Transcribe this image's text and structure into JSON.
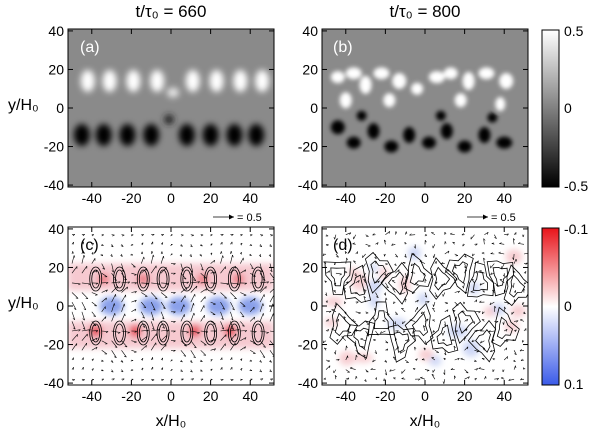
{
  "figure": {
    "column_titles": [
      "t/τ₀ = 660",
      "t/τ₀ = 800"
    ],
    "panel_labels": [
      "(a)",
      "(b)",
      "(c)",
      "(d)"
    ],
    "y_axis_label": "y/H₀",
    "x_axis_label": "x/H₀",
    "x_ticks": [
      "-40",
      "-20",
      "0",
      "20",
      "40"
    ],
    "x_tick_values": [
      -40,
      -20,
      0,
      20,
      40
    ],
    "y_ticks": [
      "40",
      "20",
      "0",
      "-20",
      "-40"
    ],
    "y_tick_values": [
      40,
      20,
      0,
      -20,
      -40
    ],
    "top_colorbar": {
      "labels": [
        "0.5",
        "0",
        "-0.5"
      ],
      "colors": [
        "#ffffff",
        "#808080",
        "#000000"
      ]
    },
    "bottom_colorbar": {
      "labels": [
        "-0.1",
        "0",
        "0.1"
      ],
      "colors": [
        "#e8141a",
        "#ffffff",
        "#3a5ae8"
      ]
    },
    "reference_vector_label": "= 0.5",
    "colors": {
      "background_gray": "#8a8a8a",
      "contour": "#000000"
    }
  }
}
